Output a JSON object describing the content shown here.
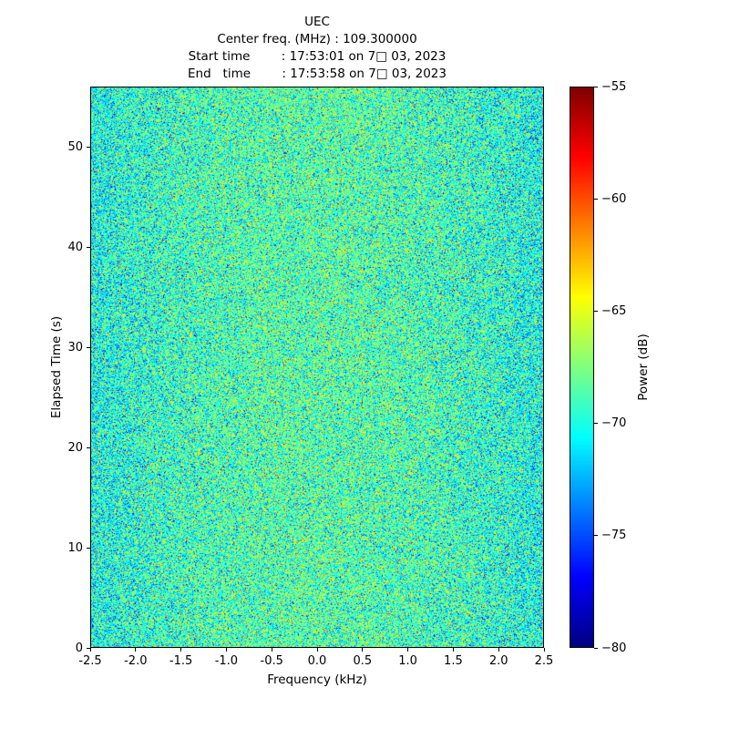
{
  "header": {
    "title": "UEC",
    "line_center": "Center freq. (MHz) : 109.300000",
    "line_start": "Start time        : 17:53:01 on 7□ 03, 2023",
    "line_end": "End   time        : 17:53:58 on 7□ 03, 2023"
  },
  "chart_data": {
    "type": "heatmap",
    "title": "UEC",
    "subtitle_lines": [
      "Center freq. (MHz) : 109.300000",
      "Start time : 17:53:01 on 7□ 03, 2023",
      "End time : 17:53:58 on 7□ 03, 2023"
    ],
    "xlabel": "Frequency (kHz)",
    "ylabel": "Elapsed Time (s)",
    "colorbar_label": "Power (dB)",
    "xlim": [
      -2.5,
      2.5
    ],
    "ylim": [
      0,
      56
    ],
    "clim": [
      -80,
      -55
    ],
    "colormap": "jet",
    "grid": false,
    "x_ticks": {
      "values": [
        -2.5,
        -2.0,
        -1.5,
        -1.0,
        -0.5,
        0.0,
        0.5,
        1.0,
        1.5,
        2.0,
        2.5
      ],
      "labels": [
        "-2.5",
        "-2.0",
        "-1.5",
        "-1.0",
        "-0.5",
        "0.0",
        "0.5",
        "1.0",
        "1.5",
        "2.0",
        "2.5"
      ]
    },
    "y_ticks": {
      "values": [
        0,
        10,
        20,
        30,
        40,
        50
      ],
      "labels": [
        "0",
        "10",
        "20",
        "30",
        "40",
        "50"
      ]
    },
    "colorbar_ticks": {
      "values": [
        -55,
        -60,
        -65,
        -70,
        -75,
        -80
      ],
      "labels": [
        "−55",
        "−60",
        "−65",
        "−70",
        "−75",
        "−80"
      ]
    },
    "noise": {
      "description": "broadband noise floor, no visible signal",
      "mean_db": -69.5,
      "std_db": 3.0,
      "center_boost_db": 1.6,
      "seed": 42
    }
  }
}
